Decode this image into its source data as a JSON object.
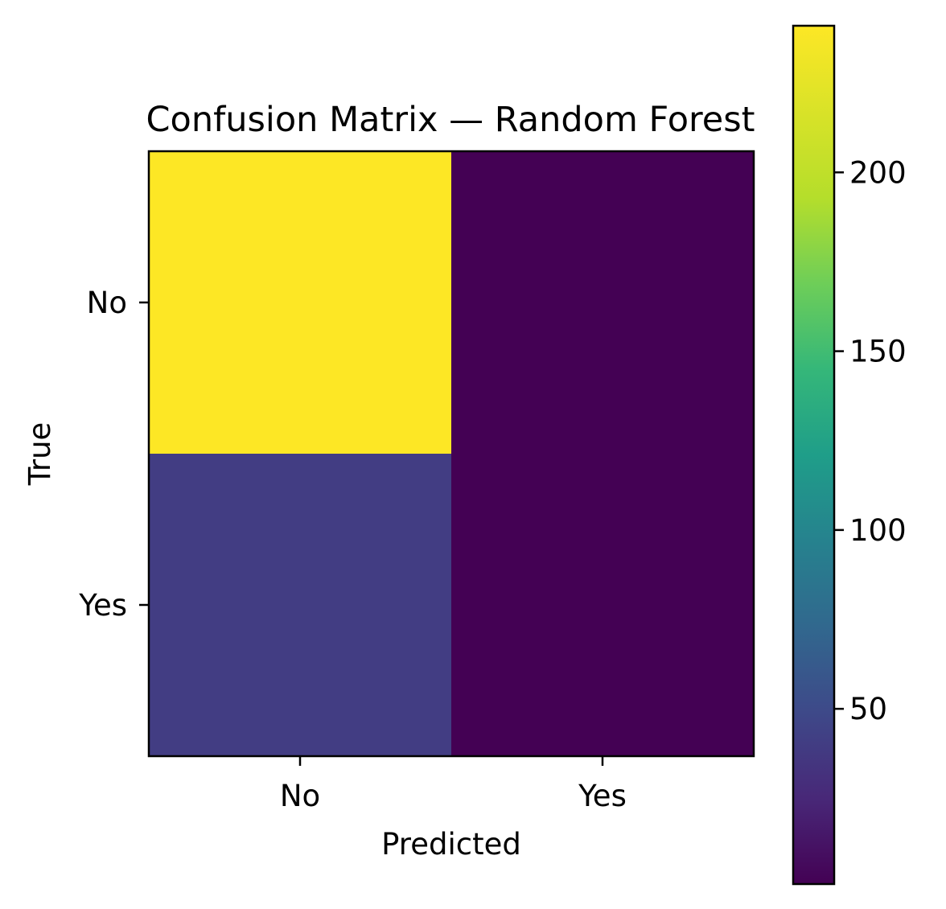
{
  "chart_data": {
    "type": "heatmap",
    "title": "Confusion Matrix — Random Forest",
    "xlabel": "Predicted",
    "ylabel": "True",
    "x_categories": [
      "No",
      "Yes"
    ],
    "y_categories": [
      "No",
      "Yes"
    ],
    "values": [
      [
        241,
        1
      ],
      [
        40,
        1
      ]
    ],
    "colormap": "viridis",
    "colorbar": {
      "range": [
        1,
        241
      ],
      "ticks": [
        50,
        100,
        150,
        200
      ],
      "tick_labels": [
        "50",
        "100",
        "150",
        "200"
      ]
    },
    "grid": false,
    "legend": "none"
  }
}
